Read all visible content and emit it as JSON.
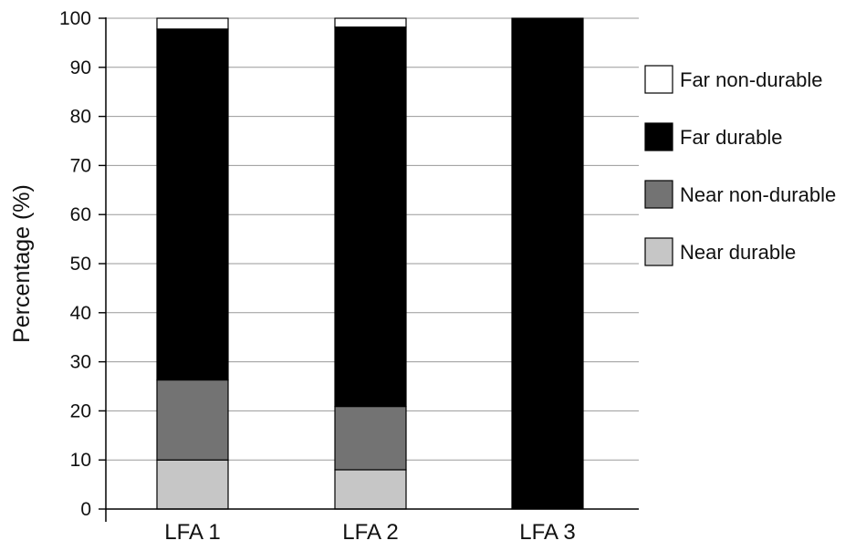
{
  "chart_data": {
    "type": "bar",
    "stacked": true,
    "title": "",
    "xlabel": "",
    "ylabel": "Percentage (%)",
    "ylim": [
      0,
      100
    ],
    "yticks": [
      0,
      10,
      20,
      30,
      40,
      50,
      60,
      70,
      80,
      90,
      100
    ],
    "grid": true,
    "legend_position": "right",
    "categories": [
      "LFA 1",
      "LFA 2",
      "LFA 3"
    ],
    "series": [
      {
        "name": "Near durable",
        "color": "#c6c6c6",
        "values": [
          10,
          8,
          0
        ]
      },
      {
        "name": "Near non-durable",
        "color": "#737373",
        "values": [
          16.3,
          12.9,
          0
        ]
      },
      {
        "name": "Far durable",
        "color": "#000000",
        "values": [
          71.5,
          77.3,
          100
        ]
      },
      {
        "name": "Far non-durable",
        "color": "#ffffff",
        "values": [
          2.2,
          1.8,
          0
        ]
      }
    ]
  }
}
